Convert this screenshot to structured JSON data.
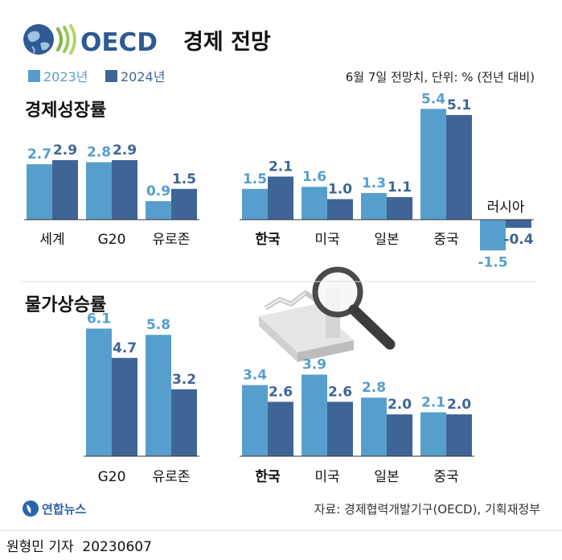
{
  "header": {
    "logo_text": "OECD",
    "title": "경제 전망",
    "subtitle": "6월 7일 전망치, 단위: % (전년 대비)"
  },
  "legend": [
    {
      "label": "2023년",
      "color": "#569fcd"
    },
    {
      "label": "2024년",
      "color": "#3f6597"
    }
  ],
  "footer": {
    "source": "자료: 경제협력개발기구(OECD), 기획재정부",
    "agency": "연합뉴스",
    "byline": "원형민 기자  20230607"
  },
  "chart_data": [
    {
      "type": "bar",
      "title": "경제성장률",
      "categories": [
        "세계",
        "G20",
        "유로존",
        "한국",
        "미국",
        "일본",
        "중국",
        "러시아"
      ],
      "highlight_category": "한국",
      "series": [
        {
          "name": "2023년",
          "values": [
            2.7,
            2.8,
            0.9,
            1.5,
            1.6,
            1.3,
            5.4,
            -1.5
          ]
        },
        {
          "name": "2024년",
          "values": [
            2.9,
            2.9,
            1.5,
            2.1,
            1.0,
            1.1,
            5.1,
            -0.4
          ]
        }
      ],
      "grid": false
    },
    {
      "type": "bar",
      "title": "물가상승률",
      "categories": [
        "G20",
        "유로존",
        "한국",
        "미국",
        "일본",
        "중국"
      ],
      "highlight_category": "한국",
      "series": [
        {
          "name": "2023년",
          "values": [
            6.1,
            5.8,
            3.4,
            3.9,
            2.8,
            2.1
          ]
        },
        {
          "name": "2024년",
          "values": [
            4.7,
            3.2,
            2.6,
            2.6,
            2.0,
            2.0
          ]
        }
      ],
      "grid": false
    }
  ]
}
